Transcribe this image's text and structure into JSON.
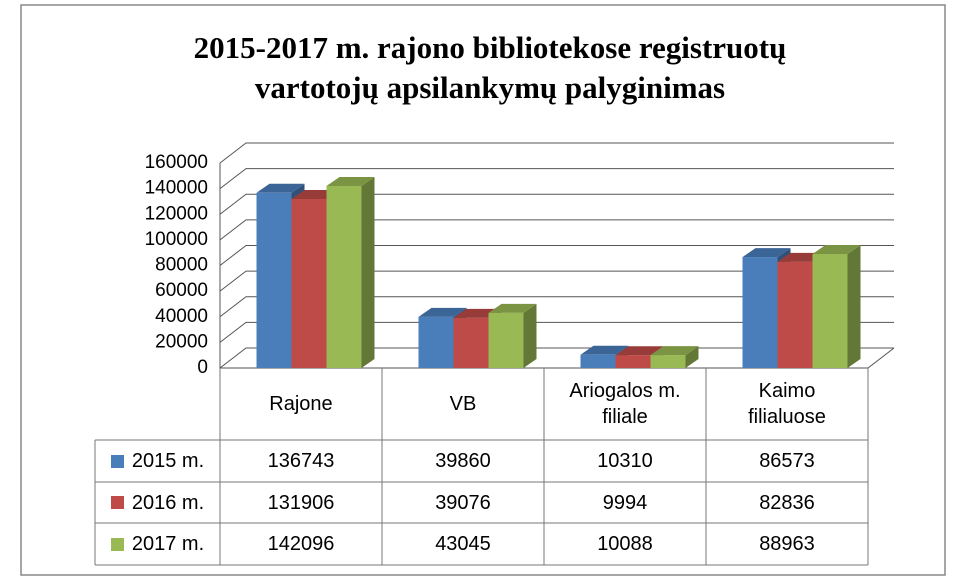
{
  "chart_data": {
    "type": "bar",
    "title": "2015-2017 m. rajono bibliotekose registruotų vartotojų apsilankymų palyginimas",
    "categories": [
      "Rajone",
      "VB",
      "Ariogalos m. filiale",
      "Kaimo filialuose"
    ],
    "series": [
      {
        "name": "2015 m.",
        "color": "#4a7ebb",
        "values": [
          136743,
          39860,
          10310,
          86573
        ]
      },
      {
        "name": "2016 m.",
        "color": "#be4b48",
        "values": [
          131906,
          39076,
          9994,
          82836
        ]
      },
      {
        "name": "2017 m.",
        "color": "#98b954",
        "values": [
          142096,
          43045,
          10088,
          88963
        ]
      }
    ],
    "ylim": [
      0,
      160000
    ],
    "yticks": [
      0,
      20000,
      40000,
      60000,
      80000,
      100000,
      120000,
      140000,
      160000
    ],
    "grid": true
  }
}
